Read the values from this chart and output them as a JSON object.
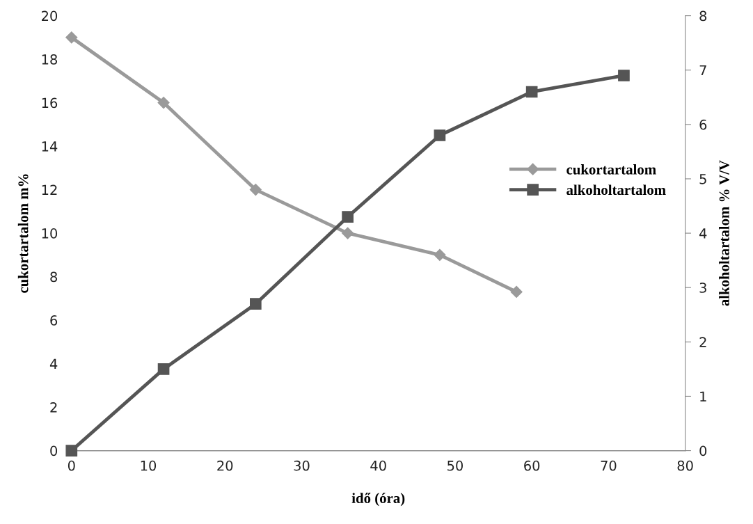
{
  "chart_data": {
    "type": "line",
    "xlabel": "idő (óra)",
    "ylabel": "cukortartalom m%",
    "y2label": "alkoholtartalom % V/V",
    "series": [
      {
        "name": "cukortartalom",
        "color": "#9a9a9a",
        "marker": "diamond",
        "x": [
          0,
          12,
          24,
          36,
          48,
          58
        ],
        "values": [
          19,
          16,
          12,
          10,
          9,
          7.3
        ]
      },
      {
        "name": "alkoholtartalom",
        "color": "#555555",
        "marker": "square",
        "axis": "y2",
        "x": [
          0,
          12,
          24,
          36,
          48,
          60,
          72
        ],
        "values": [
          0,
          1.5,
          2.7,
          4.3,
          5.8,
          6.6,
          6.9
        ]
      }
    ],
    "xlim": [
      0,
      80
    ],
    "xticks": [
      0,
      10,
      20,
      30,
      40,
      50,
      60,
      70,
      80
    ],
    "ylim": [
      0,
      20
    ],
    "yticks": [
      0,
      2,
      4,
      6,
      8,
      10,
      12,
      14,
      16,
      18,
      20
    ],
    "y2lim": [
      0,
      8
    ],
    "y2ticks": [
      0,
      1,
      2,
      3,
      4,
      5,
      6,
      7,
      8
    ],
    "grid": false,
    "legend": "right",
    "line_style": "solid"
  }
}
